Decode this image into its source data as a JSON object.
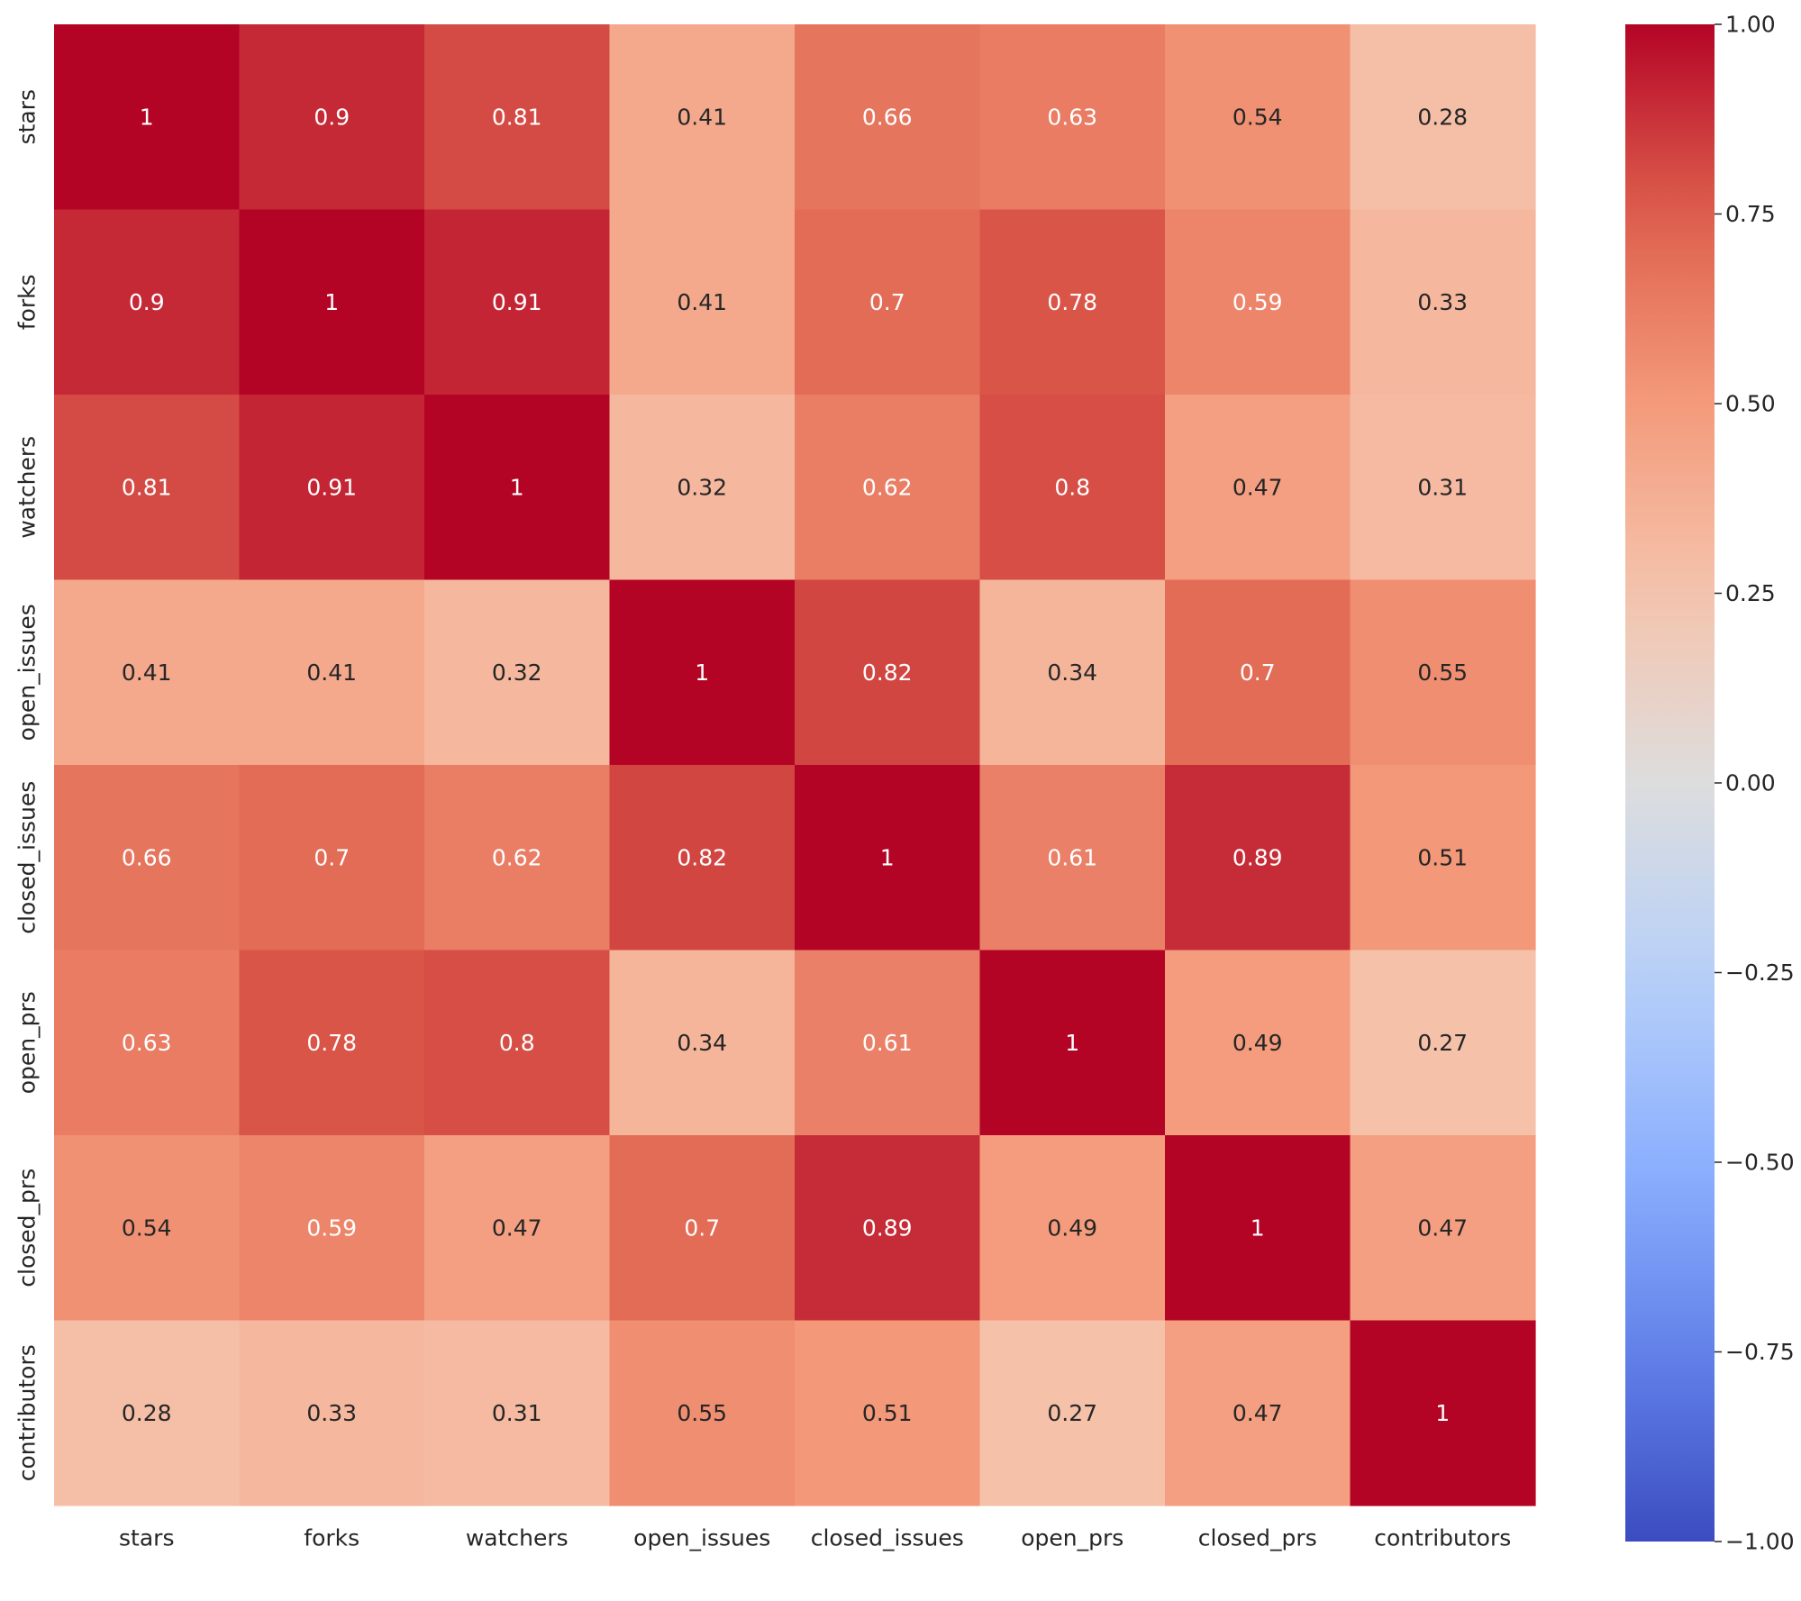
{
  "chart_data": {
    "type": "heatmap",
    "title": "",
    "xlabel": "",
    "ylabel": "",
    "labels": [
      "stars",
      "forks",
      "watchers",
      "open_issues",
      "closed_issues",
      "open_prs",
      "closed_prs",
      "contributors"
    ],
    "matrix": [
      [
        1,
        0.9,
        0.81,
        0.41,
        0.66,
        0.63,
        0.54,
        0.28
      ],
      [
        0.9,
        1,
        0.91,
        0.41,
        0.7,
        0.78,
        0.59,
        0.33
      ],
      [
        0.81,
        0.91,
        1,
        0.32,
        0.62,
        0.8,
        0.47,
        0.31
      ],
      [
        0.41,
        0.41,
        0.32,
        1,
        0.82,
        0.34,
        0.7,
        0.55
      ],
      [
        0.66,
        0.7,
        0.62,
        0.82,
        1,
        0.61,
        0.89,
        0.51
      ],
      [
        0.63,
        0.78,
        0.8,
        0.34,
        0.61,
        1,
        0.49,
        0.27
      ],
      [
        0.54,
        0.59,
        0.47,
        0.7,
        0.89,
        0.49,
        1,
        0.47
      ],
      [
        0.28,
        0.33,
        0.31,
        0.55,
        0.51,
        0.27,
        0.47,
        1
      ]
    ],
    "cell_labels": [
      [
        "1",
        "0.9",
        "0.81",
        "0.41",
        "0.66",
        "0.63",
        "0.54",
        "0.28"
      ],
      [
        "0.9",
        "1",
        "0.91",
        "0.41",
        "0.7",
        "0.78",
        "0.59",
        "0.33"
      ],
      [
        "0.81",
        "0.91",
        "1",
        "0.32",
        "0.62",
        "0.8",
        "0.47",
        "0.31"
      ],
      [
        "0.41",
        "0.41",
        "0.32",
        "1",
        "0.82",
        "0.34",
        "0.7",
        "0.55"
      ],
      [
        "0.66",
        "0.7",
        "0.62",
        "0.82",
        "1",
        "0.61",
        "0.89",
        "0.51"
      ],
      [
        "0.63",
        "0.78",
        "0.8",
        "0.34",
        "0.61",
        "1",
        "0.49",
        "0.27"
      ],
      [
        "0.54",
        "0.59",
        "0.47",
        "0.7",
        "0.89",
        "0.49",
        "1",
        "0.47"
      ],
      [
        "0.28",
        "0.33",
        "0.31",
        "0.55",
        "0.51",
        "0.27",
        "0.47",
        "1"
      ]
    ],
    "colormap": "coolwarm",
    "vmin": -1.0,
    "vmax": 1.0,
    "colorbar": {
      "ticks": [
        1.0,
        0.75,
        0.5,
        0.25,
        0.0,
        -0.25,
        -0.5,
        -0.75,
        -1.0
      ],
      "tick_labels": [
        "1.00",
        "0.75",
        "0.50",
        "0.25",
        "0.00",
        "−0.25",
        "−0.50",
        "−0.75",
        "−1.00"
      ],
      "placement": "right"
    },
    "colors": {
      "cold": "#3b4cc0",
      "neutral": "#dddddd",
      "warm": "#b40426",
      "text_dark": "#262626",
      "text_light": "#ffffff"
    }
  }
}
